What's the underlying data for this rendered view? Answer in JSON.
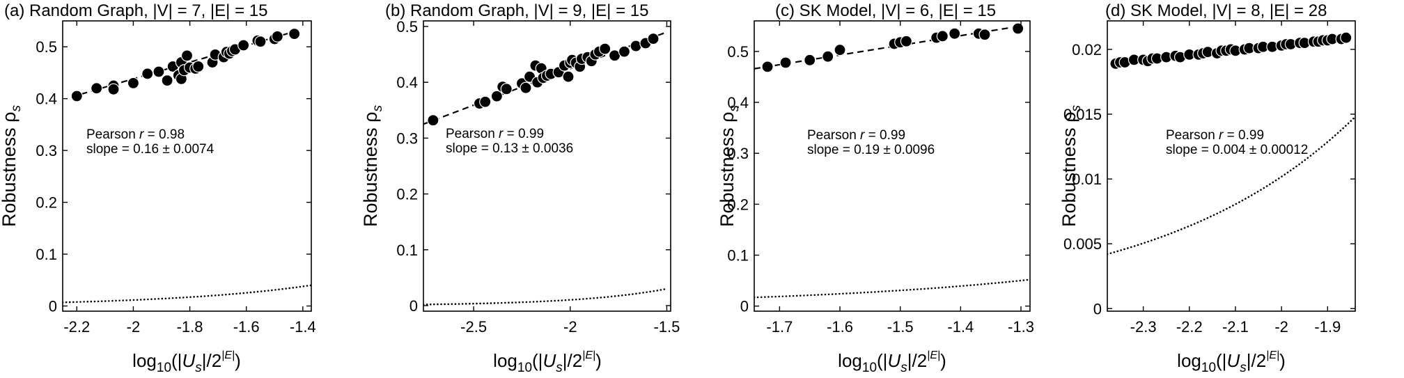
{
  "ylabel": "Robustness ρ",
  "ylabel_sub": "s",
  "xlabel": {
    "log": "log",
    "base": "10",
    "open": "(|",
    "var": "U",
    "var_sub": "s",
    "mid": "|/2",
    "exp": "|E|",
    "close": ")"
  },
  "annotation_r_label": "Pearson ",
  "annotation_r_var": "r",
  "chart_data": [
    {
      "type": "scatter",
      "title": "(a) Random Graph, |V| = 7, |E| = 15",
      "xlim": [
        -2.25,
        -1.37
      ],
      "ylim": [
        -0.01,
        0.55
      ],
      "xticks": [
        -2.2,
        -2,
        -1.8,
        -1.6,
        -1.4
      ],
      "xtick_labels": [
        "-2.2",
        "-2",
        "-1.8",
        "-1.6",
        "-1.4"
      ],
      "yticks": [
        0,
        0.1,
        0.2,
        0.3,
        0.4,
        0.5
      ],
      "ytick_labels": [
        "0",
        "0.1",
        "0.2",
        "0.3",
        "0.4",
        "0.5"
      ],
      "pearson": " = 0.98",
      "slope": "slope = 0.16 ± 0.0074",
      "fit": {
        "x": [
          -2.22,
          -1.42
        ],
        "y": [
          0.403,
          0.531
        ]
      },
      "baseline": {
        "x": [
          -2.25,
          -1.37
        ],
        "y": [
          0.007,
          0.04
        ]
      },
      "points": {
        "x": [
          -2.2,
          -2.13,
          -2.07,
          -2.07,
          -2.0,
          -1.95,
          -1.91,
          -1.88,
          -1.86,
          -1.84,
          -1.83,
          -1.83,
          -1.82,
          -1.81,
          -1.8,
          -1.78,
          -1.77,
          -1.72,
          -1.71,
          -1.68,
          -1.67,
          -1.66,
          -1.65,
          -1.64,
          -1.61,
          -1.56,
          -1.55,
          -1.5,
          -1.49,
          -1.43
        ],
        "y": [
          0.405,
          0.42,
          0.425,
          0.418,
          0.43,
          0.448,
          0.452,
          0.435,
          0.462,
          0.445,
          0.438,
          0.47,
          0.455,
          0.483,
          0.46,
          0.458,
          0.462,
          0.47,
          0.485,
          0.48,
          0.49,
          0.487,
          0.492,
          0.495,
          0.503,
          0.512,
          0.51,
          0.515,
          0.52,
          0.525
        ]
      }
    },
    {
      "type": "scatter",
      "title": "(b) Random Graph, |V| = 9, |E| = 15",
      "xlim": [
        -2.76,
        -1.48
      ],
      "ylim": [
        -0.01,
        0.51
      ],
      "xticks": [
        -2.5,
        -2,
        -1.5
      ],
      "xtick_labels": [
        "-2.5",
        "-2",
        "-1.5"
      ],
      "yticks": [
        0,
        0.1,
        0.2,
        0.3,
        0.4,
        0.5
      ],
      "ytick_labels": [
        "0",
        "0.1",
        "0.2",
        "0.3",
        "0.4",
        "0.5"
      ],
      "pearson": " = 0.99",
      "slope": "slope = 0.13 ± 0.0036",
      "fit": {
        "x": [
          -2.76,
          -1.5
        ],
        "y": [
          0.325,
          0.49
        ]
      },
      "baseline": {
        "x": [
          -2.76,
          -1.5
        ],
        "y": [
          0.002,
          0.03
        ]
      },
      "points": {
        "x": [
          -2.71,
          -2.47,
          -2.44,
          -2.38,
          -2.35,
          -2.33,
          -2.25,
          -2.23,
          -2.21,
          -2.18,
          -2.17,
          -2.15,
          -2.14,
          -2.12,
          -2.1,
          -2.06,
          -2.03,
          -2.01,
          -2.0,
          -1.99,
          -1.97,
          -1.95,
          -1.94,
          -1.91,
          -1.89,
          -1.87,
          -1.85,
          -1.82,
          -1.77,
          -1.72,
          -1.66,
          -1.61,
          -1.57
        ],
        "y": [
          0.332,
          0.362,
          0.365,
          0.375,
          0.392,
          0.388,
          0.398,
          0.39,
          0.41,
          0.43,
          0.4,
          0.425,
          0.408,
          0.412,
          0.415,
          0.418,
          0.43,
          0.41,
          0.435,
          0.44,
          0.435,
          0.428,
          0.442,
          0.445,
          0.438,
          0.45,
          0.455,
          0.46,
          0.448,
          0.455,
          0.465,
          0.47,
          0.478
        ]
      }
    },
    {
      "type": "scatter",
      "title": "(c) SK Model, |V| = 6, |E| = 15",
      "xlim": [
        -1.742,
        -1.285
      ],
      "ylim": [
        -0.01,
        0.56
      ],
      "xticks": [
        -1.7,
        -1.6,
        -1.5,
        -1.4,
        -1.3
      ],
      "xtick_labels": [
        "-1.7",
        "-1.6",
        "-1.5",
        "-1.4",
        "-1.3"
      ],
      "yticks": [
        0,
        0.1,
        0.2,
        0.3,
        0.4,
        0.5
      ],
      "ytick_labels": [
        "0",
        "0.1",
        "0.2",
        "0.3",
        "0.4",
        "0.5"
      ],
      "pearson": " = 0.99",
      "slope": "slope = 0.19 ± 0.0096",
      "fit": {
        "x": [
          -1.742,
          -1.3
        ],
        "y": [
          0.466,
          0.55
        ]
      },
      "baseline": {
        "x": [
          -1.742,
          -1.285
        ],
        "y": [
          0.017,
          0.052
        ]
      },
      "points": {
        "x": [
          -1.72,
          -1.69,
          -1.65,
          -1.62,
          -1.6,
          -1.51,
          -1.5,
          -1.49,
          -1.44,
          -1.43,
          -1.41,
          -1.37,
          -1.36,
          -1.305
        ],
        "y": [
          0.47,
          0.478,
          0.483,
          0.49,
          0.503,
          0.515,
          0.518,
          0.52,
          0.527,
          0.53,
          0.535,
          0.535,
          0.533,
          0.545
        ]
      }
    },
    {
      "type": "scatter",
      "title": "(d) SK Model, |V| = 8, |E| = 28",
      "xlim": [
        -2.378,
        -1.84
      ],
      "ylim": [
        -0.0002,
        0.0222
      ],
      "xticks": [
        -2.3,
        -2.2,
        -2.1,
        -2,
        -1.9
      ],
      "xtick_labels": [
        "-2.3",
        "-2.2",
        "-2.1",
        "-2",
        "-1.9"
      ],
      "yticks": [
        0,
        0.005,
        0.01,
        0.015,
        0.02
      ],
      "ytick_labels": [
        "0",
        "0.005",
        "0.01",
        "0.015",
        "0.02"
      ],
      "pearson": " = 0.99",
      "slope": "slope = 0.004 ± 0.00012",
      "fit": {
        "x": [
          -2.36,
          -1.85
        ],
        "y": [
          0.0188,
          0.0209
        ]
      },
      "baseline": {
        "x": [
          -2.378,
          -1.84
        ],
        "y": [
          0.0042,
          0.0148
        ]
      },
      "points": {
        "x": [
          -2.36,
          -2.35,
          -2.34,
          -2.32,
          -2.3,
          -2.29,
          -2.28,
          -2.27,
          -2.25,
          -2.23,
          -2.22,
          -2.2,
          -2.18,
          -2.17,
          -2.16,
          -2.14,
          -2.13,
          -2.12,
          -2.11,
          -2.1,
          -2.08,
          -2.07,
          -2.05,
          -2.04,
          -2.02,
          -2.0,
          -1.99,
          -1.98,
          -1.96,
          -1.95,
          -1.93,
          -1.92,
          -1.91,
          -1.9,
          -1.89,
          -1.87,
          -1.86
        ],
        "y": [
          0.0189,
          0.019,
          0.019,
          0.0192,
          0.0192,
          0.0191,
          0.0193,
          0.0193,
          0.0194,
          0.0195,
          0.0194,
          0.0196,
          0.0196,
          0.0197,
          0.0198,
          0.0197,
          0.0199,
          0.0199,
          0.02,
          0.0199,
          0.02,
          0.0201,
          0.0201,
          0.0202,
          0.0202,
          0.0203,
          0.0204,
          0.0204,
          0.0205,
          0.0205,
          0.0206,
          0.0206,
          0.0207,
          0.0207,
          0.0208,
          0.0208,
          0.0209
        ]
      }
    }
  ]
}
